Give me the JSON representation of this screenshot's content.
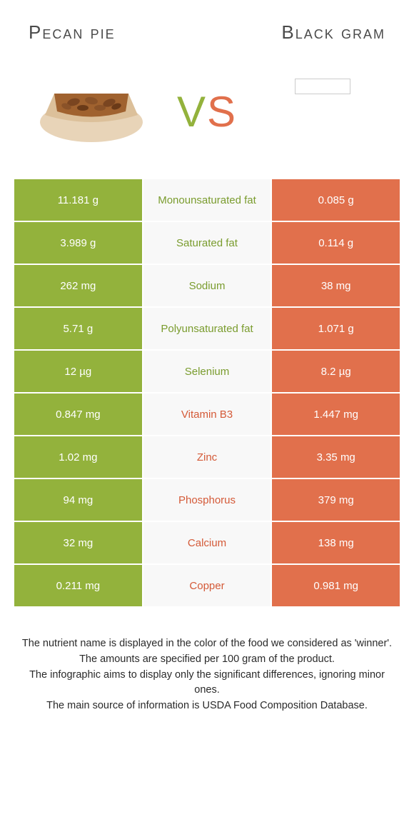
{
  "header": {
    "left_title": "Pecan pie",
    "right_title": "Black gram"
  },
  "vs": {
    "v": "V",
    "s": "S"
  },
  "colors": {
    "green": "#93b23c",
    "orange": "#e1704c",
    "green_text": "#7a9c2e",
    "orange_text": "#d45a38",
    "mid_bg": "#f8f8f8"
  },
  "rows": [
    {
      "left": "11.181 g",
      "label": "Monounsaturated fat",
      "right": "0.085 g",
      "winner": "green"
    },
    {
      "left": "3.989 g",
      "label": "Saturated fat",
      "right": "0.114 g",
      "winner": "green"
    },
    {
      "left": "262 mg",
      "label": "Sodium",
      "right": "38 mg",
      "winner": "green"
    },
    {
      "left": "5.71 g",
      "label": "Polyunsaturated fat",
      "right": "1.071 g",
      "winner": "green"
    },
    {
      "left": "12 µg",
      "label": "Selenium",
      "right": "8.2 µg",
      "winner": "green"
    },
    {
      "left": "0.847 mg",
      "label": "Vitamin B3",
      "right": "1.447 mg",
      "winner": "orange"
    },
    {
      "left": "1.02 mg",
      "label": "Zinc",
      "right": "3.35 mg",
      "winner": "orange"
    },
    {
      "left": "94 mg",
      "label": "Phosphorus",
      "right": "379 mg",
      "winner": "orange"
    },
    {
      "left": "32 mg",
      "label": "Calcium",
      "right": "138 mg",
      "winner": "orange"
    },
    {
      "left": "0.211 mg",
      "label": "Copper",
      "right": "0.981 mg",
      "winner": "orange"
    }
  ],
  "footnote": {
    "line1": "The nutrient name is displayed in the color of the food we considered as 'winner'.",
    "line2": "The amounts are specified per 100 gram of the product.",
    "line3": "The infographic aims to display only the significant differences, ignoring minor ones.",
    "line4": "The main source of information is USDA Food Composition Database."
  }
}
